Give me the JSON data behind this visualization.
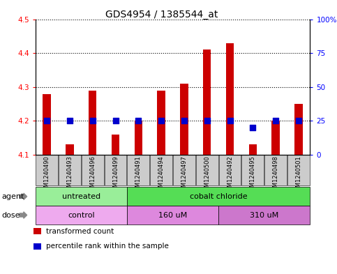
{
  "title": "GDS4954 / 1385544_at",
  "samples": [
    "GSM1240490",
    "GSM1240493",
    "GSM1240496",
    "GSM1240499",
    "GSM1240491",
    "GSM1240494",
    "GSM1240497",
    "GSM1240500",
    "GSM1240492",
    "GSM1240495",
    "GSM1240498",
    "GSM1240501"
  ],
  "transformed_count": [
    4.28,
    4.13,
    4.29,
    4.16,
    4.2,
    4.29,
    4.31,
    4.41,
    4.43,
    4.13,
    4.2,
    4.25
  ],
  "percentile_rank": [
    25,
    25,
    25,
    25,
    25,
    25,
    25,
    25,
    25,
    20,
    25,
    25
  ],
  "ylim_left": [
    4.1,
    4.5
  ],
  "ylim_right": [
    0,
    100
  ],
  "yticks_left": [
    4.1,
    4.2,
    4.3,
    4.4,
    4.5
  ],
  "yticks_right": [
    0,
    25,
    50,
    75,
    100
  ],
  "ytick_labels_right": [
    "0",
    "25",
    "50",
    "75",
    "100%"
  ],
  "bar_color": "#cc0000",
  "dot_color": "#0000cc",
  "bar_bottom": 4.1,
  "dot_size": 30,
  "agent_groups": [
    {
      "label": "untreated",
      "start": 0,
      "end": 4,
      "color": "#99ee99"
    },
    {
      "label": "cobalt chloride",
      "start": 4,
      "end": 12,
      "color": "#55dd55"
    }
  ],
  "dose_groups": [
    {
      "label": "control",
      "start": 0,
      "end": 4,
      "color": "#eeaaee"
    },
    {
      "label": "160 uM",
      "start": 4,
      "end": 8,
      "color": "#dd88dd"
    },
    {
      "label": "310 uM",
      "start": 8,
      "end": 12,
      "color": "#cc77cc"
    }
  ],
  "legend_items": [
    {
      "label": "transformed count",
      "color": "#cc0000"
    },
    {
      "label": "percentile rank within the sample",
      "color": "#0000cc"
    }
  ],
  "background_color": "#ffffff",
  "title_fontsize": 10,
  "tick_fontsize": 7.5,
  "bar_width": 0.35
}
